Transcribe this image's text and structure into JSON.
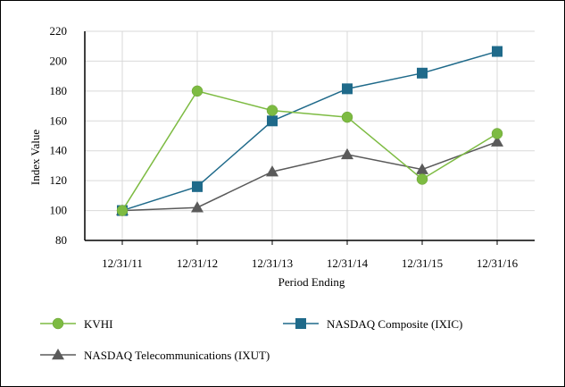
{
  "chart_data": {
    "type": "line",
    "title": "",
    "xlabel": "Period Ending",
    "ylabel": "Index Value",
    "categories": [
      "12/31/11",
      "12/31/12",
      "12/31/13",
      "12/31/14",
      "12/31/15",
      "12/31/16"
    ],
    "ylim": [
      80,
      220
    ],
    "yticks": [
      80,
      100,
      120,
      140,
      160,
      180,
      200,
      220
    ],
    "grid": true,
    "legend_position": "bottom",
    "series": [
      {
        "name": "KVHI",
        "color": "#7dbb42",
        "marker": "circle",
        "values": [
          100,
          180,
          167,
          162.5,
          121,
          151.5
        ]
      },
      {
        "name": "NASDAQ Composite (IXIC)",
        "color": "#1f6a8a",
        "marker": "square",
        "values": [
          100,
          116,
          160,
          181.5,
          192,
          206.5
        ]
      },
      {
        "name": "NASDAQ Telecommunications (IXUT)",
        "color": "#5a5a5a",
        "marker": "triangle",
        "values": [
          100,
          102,
          126,
          137.5,
          127.5,
          146
        ]
      }
    ]
  }
}
